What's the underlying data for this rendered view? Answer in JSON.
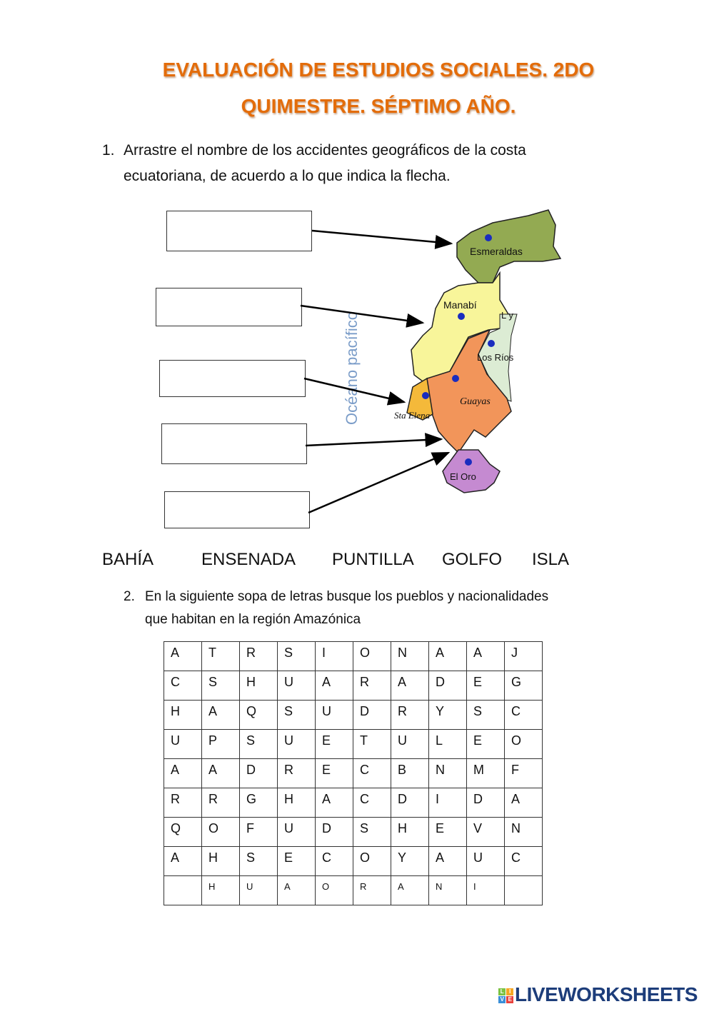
{
  "title": {
    "line1": "EVALUACIÓN DE ESTUDIOS SOCIALES. 2DO",
    "line2": "QUIMESTRE. SÉPTIMO AÑO."
  },
  "question1": {
    "number": "1.",
    "line1": "Arrastre  el nombre de los accidentes geográficos de la costa",
    "line2": "ecuatoriana, de acuerdo a lo que indica la flecha."
  },
  "map": {
    "ocean_label": "Océano pacífico",
    "regions": [
      {
        "name": "Esmeraldas",
        "color": "#93aa52"
      },
      {
        "name": "Manabí",
        "color": "#f8f59a"
      },
      {
        "name": "Los Ríos",
        "color": "#dcecd4"
      },
      {
        "name": "Guayas",
        "color": "#f2955a"
      },
      {
        "name": "Sta Elena",
        "color": "#f4b93a"
      },
      {
        "name": "El Oro",
        "color": "#c58ad1"
      }
    ],
    "partial_label": "L y"
  },
  "word_bank": [
    "BAHÍA",
    "ENSENADA",
    "PUNTILLA",
    "GOLFO",
    "ISLA"
  ],
  "question2": {
    "number": "2.",
    "line1": "En la siguiente sopa de letras busque los pueblos y nacionalidades",
    "line2": "que habitan en la región Amazónica"
  },
  "grid": [
    [
      "A",
      "T",
      "R",
      "S",
      "I",
      "O",
      "N",
      "A",
      "A",
      "J"
    ],
    [
      "C",
      "S",
      "H",
      "U",
      "A",
      "R",
      "A",
      "D",
      "E",
      "G"
    ],
    [
      "H",
      "A",
      "Q",
      "S",
      "U",
      "D",
      "R",
      "Y",
      "S",
      "C"
    ],
    [
      "U",
      "P",
      "S",
      "U",
      "E",
      "T",
      "U",
      "L",
      "E",
      "O"
    ],
    [
      "A",
      "A",
      "D",
      "R",
      "E",
      "C",
      "B",
      "N",
      "M",
      "F"
    ],
    [
      "R",
      "R",
      "G",
      "H",
      "A",
      "C",
      "D",
      "I",
      "D",
      "A"
    ],
    [
      "Q",
      "O",
      "F",
      "U",
      "D",
      "S",
      "H",
      "E",
      "V",
      "N"
    ],
    [
      "A",
      "H",
      "S",
      "E",
      "C",
      "O",
      "Y",
      "A",
      "U",
      "C"
    ],
    [
      "",
      "H",
      "U",
      "A",
      "O",
      "R",
      "A",
      "N",
      "I",
      ""
    ]
  ],
  "logo": {
    "text": "LIVEWORKSHEETS",
    "badge": [
      "L",
      "I",
      "V",
      "E"
    ],
    "color": "#1d3d7a"
  }
}
